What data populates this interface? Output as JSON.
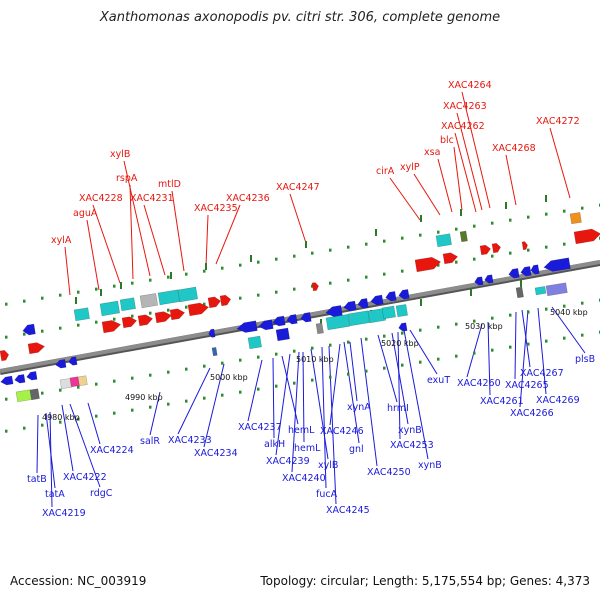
{
  "title": "Xanthomonas axonopodis pv. citri str. 306, complete genome",
  "footer": {
    "accession": "Accession: NC_003919",
    "topology": "Topology: circular; Length: 5,175,554 bp; Genes: 4,373"
  },
  "kbp_labels": [
    "4980 kbp",
    "4990 kbp",
    "5000 kbp",
    "5010 kbp",
    "5020 kbp",
    "5030 kbp",
    "5040 kbp"
  ],
  "colors": {
    "forward": "#e8170e",
    "reverse": "#1a1adb",
    "backbone": "#8c8c8c",
    "tick": "#2e8b2e",
    "cyan": "#1fc7c7"
  },
  "forward_labels": [
    "xylA",
    "aguA",
    "XAC4228",
    "rspA",
    "xylB",
    "XAC4231",
    "mtlD",
    "XAC4235",
    "XAC4236",
    "XAC4247",
    "cirA",
    "xylP",
    "xsa",
    "blc",
    "XAC4262",
    "XAC4263",
    "XAC4264",
    "XAC4268",
    "XAC4272"
  ],
  "reverse_labels": [
    "tatB",
    "tatA",
    "XAC4219",
    "XAC4222",
    "rdgC",
    "XAC4224",
    "salR",
    "XAC4233",
    "XAC4234",
    "XAC4237",
    "alkH",
    "hemL",
    "XAC4239",
    "XAC4240",
    "hemL",
    "xylB",
    "fucA",
    "XAC4245",
    "XAC4246",
    "gnl",
    "xynA",
    "XAC4250",
    "hrmI",
    "xynB",
    "XAC4253",
    "xynB",
    "exuT",
    "XAC4260",
    "XAC4261",
    "XAC4265",
    "XAC4267",
    "XAC4266",
    "XAC4269",
    "plsB"
  ]
}
